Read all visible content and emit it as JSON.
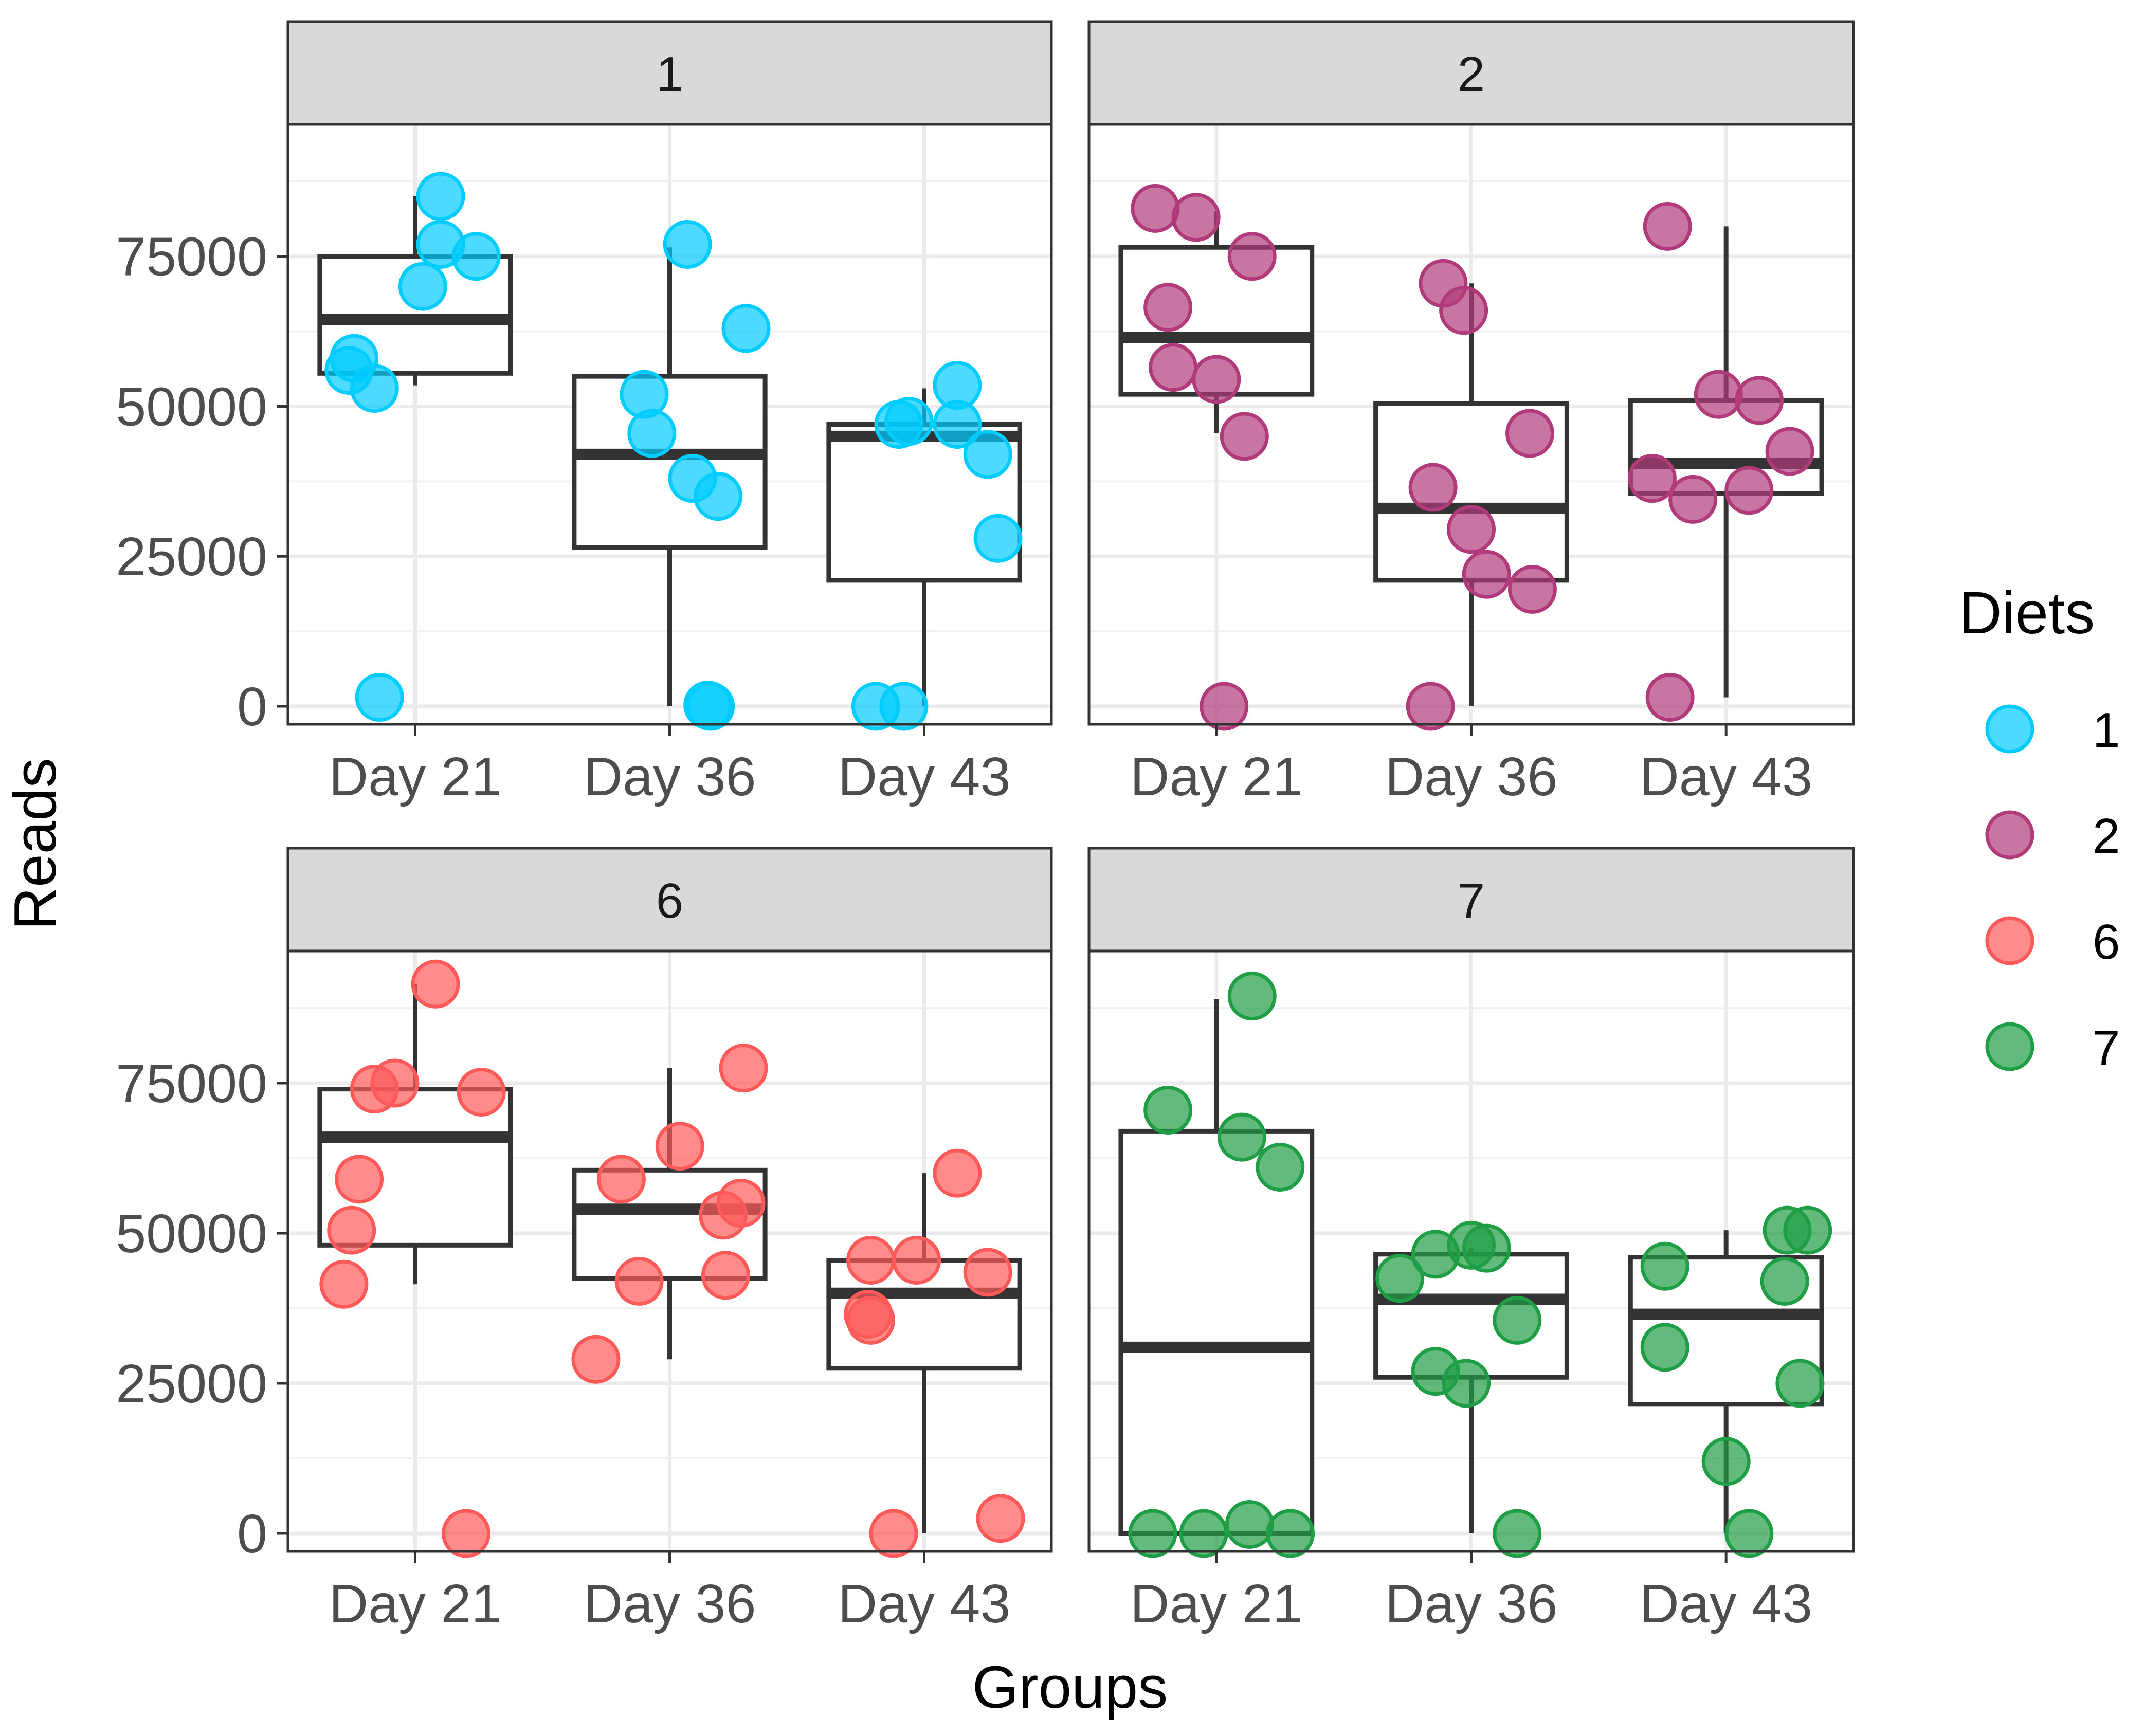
{
  "colors": {
    "1": "#00ccff",
    "2": "#b03a7a",
    "6": "#ff5a5a",
    "7": "#1f9e46"
  },
  "chart_data": {
    "type": "box",
    "xlabel": "Groups",
    "ylabel": "Reads",
    "ylim": [
      -3000,
      97000
    ],
    "y_ticks": [
      0,
      25000,
      50000,
      75000
    ],
    "y_tick_labels": [
      "0",
      "25000",
      "50000",
      "75000"
    ],
    "categories": [
      "Day 21",
      "Day 36",
      "Day 43"
    ],
    "legend": {
      "title": "Diets",
      "entries": [
        "1",
        "2",
        "6",
        "7"
      ]
    },
    "panels": [
      {
        "label": "1",
        "diet": "1",
        "boxes": [
          {
            "category": "Day 21",
            "lower": 53500,
            "q1": 55500,
            "median": 64500,
            "q3": 75000,
            "upper": 85000
          },
          {
            "category": "Day 36",
            "lower": 0,
            "q1": 26500,
            "median": 42000,
            "q3": 55000,
            "upper": 76500
          },
          {
            "category": "Day 43",
            "lower": 0,
            "q1": 21000,
            "median": 45000,
            "q3": 47000,
            "upper": 53000
          }
        ],
        "points": [
          {
            "category": "Day 21",
            "offset": 0.1,
            "value": 85000
          },
          {
            "category": "Day 21",
            "offset": 0.1,
            "value": 77000
          },
          {
            "category": "Day 21",
            "offset": 0.24,
            "value": 75000
          },
          {
            "category": "Day 21",
            "offset": 0.03,
            "value": 70000
          },
          {
            "category": "Day 21",
            "offset": -0.24,
            "value": 58000
          },
          {
            "category": "Day 21",
            "offset": -0.26,
            "value": 56000
          },
          {
            "category": "Day 21",
            "offset": -0.16,
            "value": 53000
          },
          {
            "category": "Day 21",
            "offset": -0.14,
            "value": 1500
          },
          {
            "category": "Day 36",
            "offset": 0.07,
            "value": 77000
          },
          {
            "category": "Day 36",
            "offset": 0.3,
            "value": 63000
          },
          {
            "category": "Day 36",
            "offset": -0.1,
            "value": 52000
          },
          {
            "category": "Day 36",
            "offset": -0.07,
            "value": 45500
          },
          {
            "category": "Day 36",
            "offset": 0.09,
            "value": 38000
          },
          {
            "category": "Day 36",
            "offset": 0.19,
            "value": 35000
          },
          {
            "category": "Day 36",
            "offset": 0.16,
            "value": 0
          },
          {
            "category": "Day 36",
            "offset": 0.15,
            "value": 200
          },
          {
            "category": "Day 43",
            "offset": 0.13,
            "value": 53500
          },
          {
            "category": "Day 43",
            "offset": -0.1,
            "value": 47000
          },
          {
            "category": "Day 43",
            "offset": -0.06,
            "value": 47500
          },
          {
            "category": "Day 43",
            "offset": 0.13,
            "value": 47000
          },
          {
            "category": "Day 43",
            "offset": 0.25,
            "value": 42000
          },
          {
            "category": "Day 43",
            "offset": 0.29,
            "value": 28000
          },
          {
            "category": "Day 43",
            "offset": -0.19,
            "value": 0
          },
          {
            "category": "Day 43",
            "offset": -0.08,
            "value": 0
          }
        ]
      },
      {
        "label": "2",
        "diet": "2",
        "boxes": [
          {
            "category": "Day 21",
            "lower": 45500,
            "q1": 52000,
            "median": 61500,
            "q3": 76500,
            "upper": 82500
          },
          {
            "category": "Day 36",
            "lower": 0,
            "q1": 21000,
            "median": 33000,
            "q3": 50500,
            "upper": 70500
          },
          {
            "category": "Day 43",
            "lower": 1500,
            "q1": 35500,
            "median": 40500,
            "q3": 51000,
            "upper": 80000
          }
        ],
        "points": [
          {
            "category": "Day 21",
            "offset": -0.24,
            "value": 83000
          },
          {
            "category": "Day 21",
            "offset": -0.08,
            "value": 81500
          },
          {
            "category": "Day 21",
            "offset": 0.14,
            "value": 75000
          },
          {
            "category": "Day 21",
            "offset": -0.19,
            "value": 66500
          },
          {
            "category": "Day 21",
            "offset": -0.17,
            "value": 56500
          },
          {
            "category": "Day 21",
            "offset": 0.0,
            "value": 54500
          },
          {
            "category": "Day 21",
            "offset": 0.11,
            "value": 45000
          },
          {
            "category": "Day 21",
            "offset": 0.03,
            "value": 0
          },
          {
            "category": "Day 36",
            "offset": -0.11,
            "value": 70500
          },
          {
            "category": "Day 36",
            "offset": -0.03,
            "value": 66000
          },
          {
            "category": "Day 36",
            "offset": 0.23,
            "value": 45500
          },
          {
            "category": "Day 36",
            "offset": -0.15,
            "value": 36500
          },
          {
            "category": "Day 36",
            "offset": 0.0,
            "value": 29500
          },
          {
            "category": "Day 36",
            "offset": 0.06,
            "value": 22000
          },
          {
            "category": "Day 36",
            "offset": 0.24,
            "value": 19500
          },
          {
            "category": "Day 36",
            "offset": -0.16,
            "value": 0
          },
          {
            "category": "Day 43",
            "offset": -0.23,
            "value": 80000
          },
          {
            "category": "Day 43",
            "offset": -0.03,
            "value": 52000
          },
          {
            "category": "Day 43",
            "offset": 0.13,
            "value": 51000
          },
          {
            "category": "Day 43",
            "offset": 0.25,
            "value": 42500
          },
          {
            "category": "Day 43",
            "offset": -0.29,
            "value": 38000
          },
          {
            "category": "Day 43",
            "offset": -0.13,
            "value": 34500
          },
          {
            "category": "Day 43",
            "offset": 0.09,
            "value": 36000
          },
          {
            "category": "Day 43",
            "offset": -0.22,
            "value": 1500
          }
        ]
      },
      {
        "label": "6",
        "diet": "6",
        "boxes": [
          {
            "category": "Day 21",
            "lower": 41500,
            "q1": 48000,
            "median": 66000,
            "q3": 74000,
            "upper": 91500
          },
          {
            "category": "Day 36",
            "lower": 29000,
            "q1": 42500,
            "median": 54000,
            "q3": 60500,
            "upper": 77500
          },
          {
            "category": "Day 43",
            "lower": 0,
            "q1": 27500,
            "median": 40000,
            "q3": 45500,
            "upper": 60000
          }
        ],
        "points": [
          {
            "category": "Day 21",
            "offset": 0.08,
            "value": 91500
          },
          {
            "category": "Day 21",
            "offset": -0.16,
            "value": 74000
          },
          {
            "category": "Day 21",
            "offset": -0.08,
            "value": 75000
          },
          {
            "category": "Day 21",
            "offset": 0.26,
            "value": 73500
          },
          {
            "category": "Day 21",
            "offset": -0.22,
            "value": 59000
          },
          {
            "category": "Day 21",
            "offset": -0.25,
            "value": 50500
          },
          {
            "category": "Day 21",
            "offset": -0.28,
            "value": 41500
          },
          {
            "category": "Day 21",
            "offset": 0.2,
            "value": 0
          },
          {
            "category": "Day 36",
            "offset": 0.29,
            "value": 77500
          },
          {
            "category": "Day 36",
            "offset": 0.04,
            "value": 64500
          },
          {
            "category": "Day 36",
            "offset": -0.19,
            "value": 59000
          },
          {
            "category": "Day 36",
            "offset": 0.28,
            "value": 55000
          },
          {
            "category": "Day 36",
            "offset": 0.21,
            "value": 53000
          },
          {
            "category": "Day 36",
            "offset": -0.12,
            "value": 42000
          },
          {
            "category": "Day 36",
            "offset": 0.22,
            "value": 43000
          },
          {
            "category": "Day 36",
            "offset": -0.29,
            "value": 29000
          },
          {
            "category": "Day 43",
            "offset": 0.13,
            "value": 60000
          },
          {
            "category": "Day 43",
            "offset": -0.21,
            "value": 45500
          },
          {
            "category": "Day 43",
            "offset": -0.03,
            "value": 45500
          },
          {
            "category": "Day 43",
            "offset": 0.25,
            "value": 43500
          },
          {
            "category": "Day 43",
            "offset": -0.22,
            "value": 36500
          },
          {
            "category": "Day 43",
            "offset": -0.21,
            "value": 35500
          },
          {
            "category": "Day 43",
            "offset": -0.12,
            "value": 0
          },
          {
            "category": "Day 43",
            "offset": 0.3,
            "value": 2500
          }
        ]
      },
      {
        "label": "7",
        "diet": "7",
        "boxes": [
          {
            "category": "Day 21",
            "lower": 0,
            "q1": 0,
            "median": 31000,
            "q3": 67000,
            "upper": 89000
          },
          {
            "category": "Day 36",
            "lower": 0,
            "q1": 26000,
            "median": 39000,
            "q3": 46500,
            "upper": 47500
          },
          {
            "category": "Day 43",
            "lower": 0,
            "q1": 21500,
            "median": 36500,
            "q3": 46000,
            "upper": 50500
          }
        ],
        "points": [
          {
            "category": "Day 21",
            "offset": 0.14,
            "value": 89500
          },
          {
            "category": "Day 21",
            "offset": -0.19,
            "value": 70500
          },
          {
            "category": "Day 21",
            "offset": 0.1,
            "value": 66000
          },
          {
            "category": "Day 21",
            "offset": 0.25,
            "value": 61000
          },
          {
            "category": "Day 21",
            "offset": -0.25,
            "value": 0
          },
          {
            "category": "Day 21",
            "offset": -0.05,
            "value": 0
          },
          {
            "category": "Day 21",
            "offset": 0.13,
            "value": 1500
          },
          {
            "category": "Day 21",
            "offset": 0.29,
            "value": 0
          },
          {
            "category": "Day 36",
            "offset": -0.14,
            "value": 46500
          },
          {
            "category": "Day 36",
            "offset": 0.0,
            "value": 48000
          },
          {
            "category": "Day 36",
            "offset": 0.06,
            "value": 47500
          },
          {
            "category": "Day 36",
            "offset": -0.28,
            "value": 42500
          },
          {
            "category": "Day 36",
            "offset": 0.18,
            "value": 35500
          },
          {
            "category": "Day 36",
            "offset": -0.14,
            "value": 27000
          },
          {
            "category": "Day 36",
            "offset": -0.02,
            "value": 25000
          },
          {
            "category": "Day 36",
            "offset": 0.18,
            "value": 0
          },
          {
            "category": "Day 43",
            "offset": 0.24,
            "value": 50500
          },
          {
            "category": "Day 43",
            "offset": 0.32,
            "value": 50500
          },
          {
            "category": "Day 43",
            "offset": -0.24,
            "value": 44500
          },
          {
            "category": "Day 43",
            "offset": 0.23,
            "value": 42000
          },
          {
            "category": "Day 43",
            "offset": -0.24,
            "value": 31000
          },
          {
            "category": "Day 43",
            "offset": 0.29,
            "value": 25000
          },
          {
            "category": "Day 43",
            "offset": 0.0,
            "value": 12000
          },
          {
            "category": "Day 43",
            "offset": 0.09,
            "value": 0
          }
        ]
      }
    ]
  }
}
